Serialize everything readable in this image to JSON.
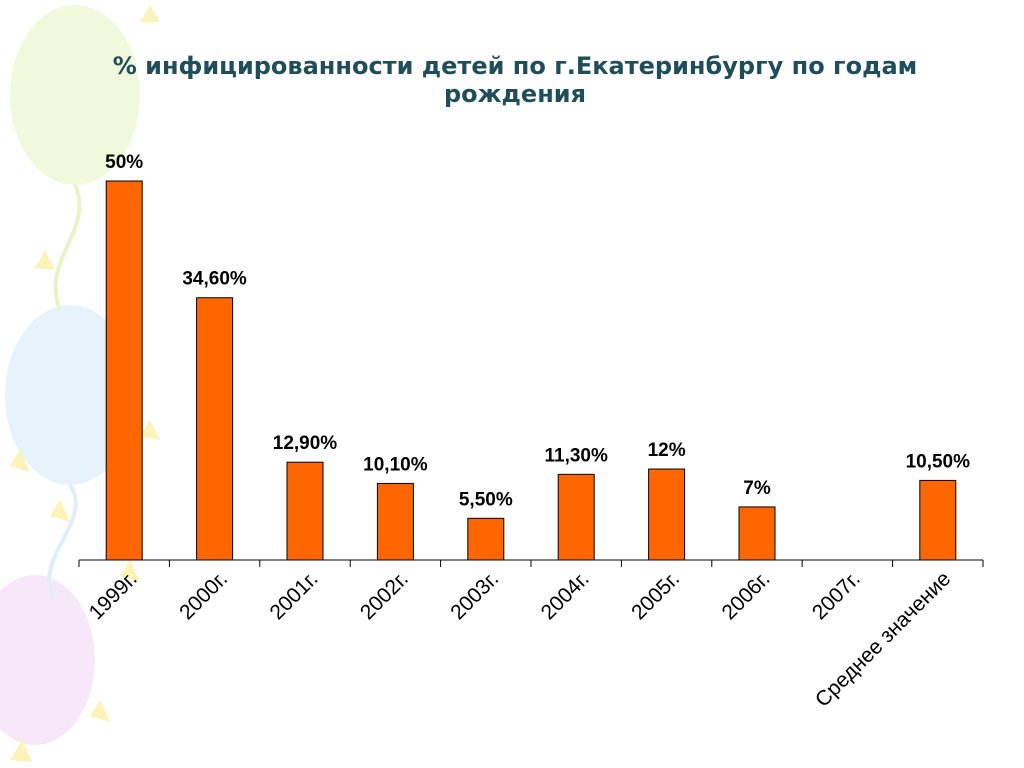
{
  "chart_data": {
    "type": "bar",
    "title": "% инфицированности детей по г.Екатеринбургу по годам рождения",
    "categories": [
      "1999г.",
      "2000г.",
      "2001г.",
      "2002г.",
      "2003г.",
      "2004г.",
      "2005г.",
      "2006г.",
      "2007г.",
      "Среднее значение"
    ],
    "values": [
      50,
      34.6,
      12.9,
      10.1,
      5.5,
      11.3,
      12,
      7,
      null,
      10.5
    ],
    "data_labels": [
      "50%",
      "34,60%",
      "12,90%",
      "10,10%",
      "5,50%",
      "11,30%",
      "12%",
      "7%",
      "",
      "10,50%"
    ],
    "xlabel": "",
    "ylabel": "",
    "ylim": [
      0,
      50
    ],
    "grid": false,
    "legend": "none",
    "bar_color": "#ff6600",
    "title_color": "#1f4e5a"
  }
}
